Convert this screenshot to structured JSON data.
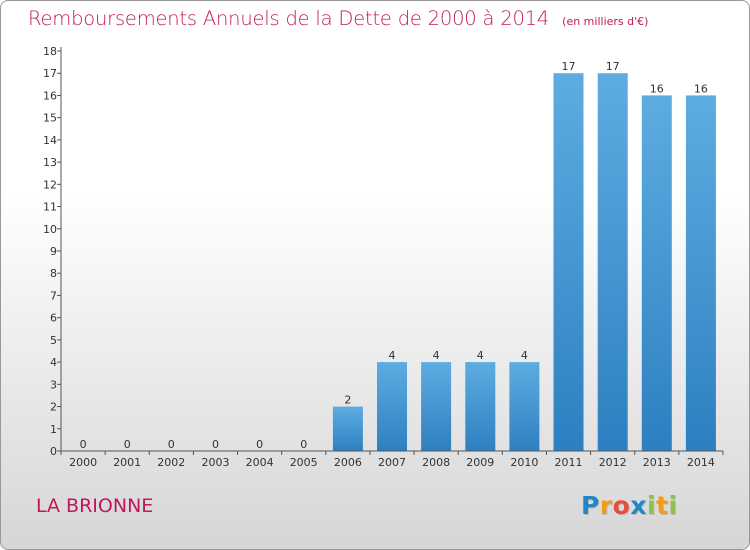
{
  "header": {
    "title": "Remboursements Annuels de la Dette de 2000 à 2014",
    "subtitle": "(en milliers d'€)"
  },
  "footer": {
    "commune": "LA BRIONNE",
    "brand": "Proxiti",
    "brand_letters": [
      {
        "char": "P",
        "color": "#1e88c8"
      },
      {
        "char": "r",
        "color": "#f39c12"
      },
      {
        "char": "o",
        "color": "#e74c3c"
      },
      {
        "char": "x",
        "color": "#1e88c8"
      },
      {
        "char": "i",
        "color": "#8bc34a"
      },
      {
        "char": "t",
        "color": "#f39c12"
      },
      {
        "char": "i",
        "color": "#8bc34a"
      }
    ]
  },
  "colors": {
    "title": "#c2185b",
    "bar_light": "#5dade2",
    "bar_dark": "#2e7fc0"
  },
  "chart_data": {
    "type": "bar",
    "title": "Remboursements Annuels de la Dette de 2000 à 2014",
    "subtitle": "(en milliers d'€)",
    "xlabel": "",
    "ylabel": "",
    "categories": [
      "2000",
      "2001",
      "2002",
      "2003",
      "2004",
      "2005",
      "2006",
      "2007",
      "2008",
      "2009",
      "2010",
      "2011",
      "2012",
      "2013",
      "2014"
    ],
    "values": [
      0,
      0,
      0,
      0,
      0,
      0,
      2,
      4,
      4,
      4,
      4,
      17,
      17,
      16,
      16
    ],
    "data_labels": [
      "0",
      "0",
      "0",
      "0",
      "0",
      "0",
      "2",
      "4",
      "4",
      "4",
      "4",
      "17",
      "17",
      "16",
      "16"
    ],
    "y_ticks": [
      "0",
      "1",
      "2",
      "3",
      "4",
      "5",
      "6",
      "7",
      "8",
      "9",
      "10",
      "11",
      "12",
      "13",
      "14",
      "15",
      "16",
      "17",
      "18"
    ],
    "ylim": [
      0,
      18
    ],
    "grid": false,
    "legend": "none"
  }
}
